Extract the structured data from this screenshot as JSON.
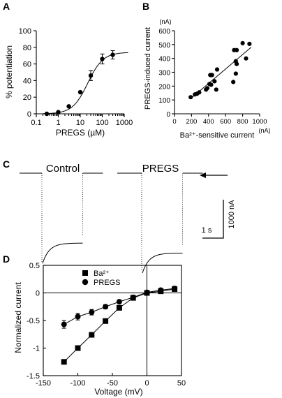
{
  "panels": {
    "a": "A",
    "b": "B",
    "c": "C",
    "d": "D"
  },
  "chart_data": [
    {
      "panel": "A",
      "type": "scatter",
      "xscale": "log",
      "xlabel": "PREGS (µM)",
      "ylabel": "% potentiation",
      "xlim": [
        0.1,
        1000
      ],
      "ylim": [
        0,
        100
      ],
      "xticks": [
        "0.1",
        "1",
        "10",
        "100",
        "1000"
      ],
      "yticks": [
        "0",
        "20",
        "40",
        "60",
        "80",
        "100"
      ],
      "points": [
        {
          "x": 0.3,
          "y": 0,
          "err": 0
        },
        {
          "x": 1,
          "y": 2,
          "err": 0
        },
        {
          "x": 3,
          "y": 9,
          "err": 0
        },
        {
          "x": 10,
          "y": 26,
          "err": 0
        },
        {
          "x": 30,
          "y": 46,
          "err": 6
        },
        {
          "x": 100,
          "y": 66,
          "err": 6
        },
        {
          "x": 300,
          "y": 71,
          "err": 5
        }
      ],
      "fit": {
        "model": "hill",
        "max": 74,
        "ec50": 22,
        "n": 1.25
      },
      "grid": false
    },
    {
      "panel": "B",
      "type": "scatter",
      "xlabel": "Ba²⁺-sensitive current",
      "xunit": "(nA)",
      "ylabel": "PREGS-induced current",
      "yunit": "(nA)",
      "xlim": [
        0,
        1000
      ],
      "ylim": [
        0,
        600
      ],
      "xticks": [
        "0",
        "200",
        "400",
        "600",
        "800",
        "1000"
      ],
      "yticks": [
        "0",
        "100",
        "200",
        "300",
        "400",
        "500",
        "600"
      ],
      "points": [
        {
          "x": 190,
          "y": 120
        },
        {
          "x": 240,
          "y": 140
        },
        {
          "x": 265,
          "y": 145
        },
        {
          "x": 290,
          "y": 155
        },
        {
          "x": 370,
          "y": 175
        },
        {
          "x": 385,
          "y": 185
        },
        {
          "x": 410,
          "y": 215
        },
        {
          "x": 430,
          "y": 210
        },
        {
          "x": 420,
          "y": 280
        },
        {
          "x": 440,
          "y": 280
        },
        {
          "x": 470,
          "y": 235
        },
        {
          "x": 490,
          "y": 175
        },
        {
          "x": 500,
          "y": 320
        },
        {
          "x": 690,
          "y": 230
        },
        {
          "x": 700,
          "y": 460
        },
        {
          "x": 720,
          "y": 380
        },
        {
          "x": 730,
          "y": 460
        },
        {
          "x": 720,
          "y": 290
        },
        {
          "x": 730,
          "y": 360
        },
        {
          "x": 800,
          "y": 510
        },
        {
          "x": 840,
          "y": 400
        },
        {
          "x": 880,
          "y": 505
        }
      ],
      "fit": {
        "model": "linear",
        "x": [
          200,
          900
        ],
        "y": [
          115,
          480
        ]
      },
      "grid": false
    },
    {
      "panel": "C",
      "type": "line",
      "traces": [
        {
          "name": "Control",
          "holding": 0,
          "peak": -2350,
          "steady": -1820,
          "pulse_s": 1.85
        },
        {
          "name": "PREGS",
          "holding": 0,
          "peak": -2600,
          "steady": -2080,
          "pulse_s": 1.85
        }
      ],
      "scalebar": {
        "x": "1 s",
        "y": "1000 nA"
      }
    },
    {
      "panel": "D",
      "type": "line",
      "xlabel": "Voltage (mV)",
      "ylabel": "Normalized  current",
      "xlim": [
        -150,
        50
      ],
      "ylim": [
        -1.5,
        0.5
      ],
      "xticks": [
        "-150",
        "-100",
        "-50",
        "0",
        "50"
      ],
      "yticks": [
        "-1.5",
        "-1",
        "-0.5",
        "0",
        "0.5"
      ],
      "legend_position": "top-left",
      "series": [
        {
          "name": "Ba²⁺",
          "marker": "square",
          "x": [
            -120,
            -100,
            -80,
            -60,
            -40,
            -20,
            0,
            20,
            40
          ],
          "y": [
            -1.25,
            -1.0,
            -0.76,
            -0.51,
            -0.27,
            -0.09,
            0.0,
            0.03,
            0.07
          ],
          "err": [
            0,
            0,
            0,
            0,
            0,
            0,
            0,
            0,
            0
          ]
        },
        {
          "name": "PREGS",
          "marker": "circle",
          "x": [
            -120,
            -100,
            -80,
            -60,
            -40,
            -20,
            0,
            20,
            40
          ],
          "y": [
            -0.57,
            -0.43,
            -0.35,
            -0.25,
            -0.16,
            -0.08,
            0.01,
            0.05,
            0.08
          ],
          "err": [
            0.07,
            0.06,
            0.05,
            0.04,
            0.03,
            0.02,
            0.02,
            0.02,
            0.02
          ]
        }
      ],
      "grid": false
    }
  ]
}
